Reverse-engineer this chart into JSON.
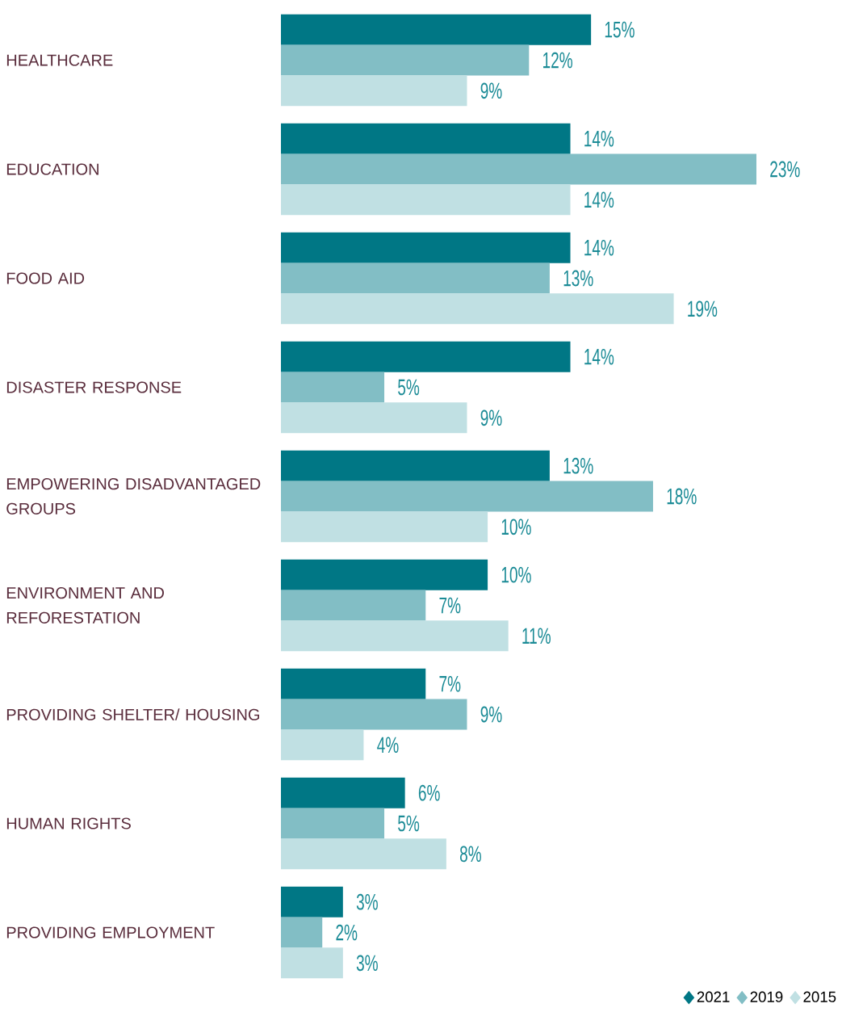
{
  "chart_data": {
    "type": "bar",
    "orientation": "horizontal",
    "categories": [
      "HEALTHCARE",
      "EDUCATION",
      "FOOD AID",
      "DISASTER RESPONSE",
      "EMPOWERING DISADVANTAGED GROUPS",
      "ENVIRONMENT AND REFORESTATION",
      "PROVIDING SHELTER/ HOUSING",
      "HUMAN RIGHTS",
      "PROVIDING EMPLOYMENT"
    ],
    "series": [
      {
        "name": "2021",
        "color": "#007785",
        "values": [
          15,
          14,
          14,
          14,
          13,
          10,
          7,
          6,
          3
        ],
        "value_labels": [
          "15%",
          "14%",
          "14%",
          "14%",
          "13%",
          "10%",
          "7%",
          "6%",
          "3%"
        ]
      },
      {
        "name": "2019",
        "color": "#82bec5",
        "values": [
          12,
          23,
          13,
          5,
          18,
          7,
          9,
          5,
          2
        ],
        "value_labels": [
          "12%",
          "23%",
          "13%",
          "5%",
          "18%",
          "7%",
          "9%",
          "5%",
          "2%"
        ]
      },
      {
        "name": "2015",
        "color": "#c0e0e3",
        "values": [
          9,
          14,
          19,
          9,
          10,
          11,
          4,
          8,
          3
        ],
        "value_labels": [
          "9%",
          "14%",
          "19%",
          "9%",
          "10%",
          "11%",
          "4%",
          "8%",
          "3%"
        ]
      }
    ],
    "legend": "bottom right"
  }
}
